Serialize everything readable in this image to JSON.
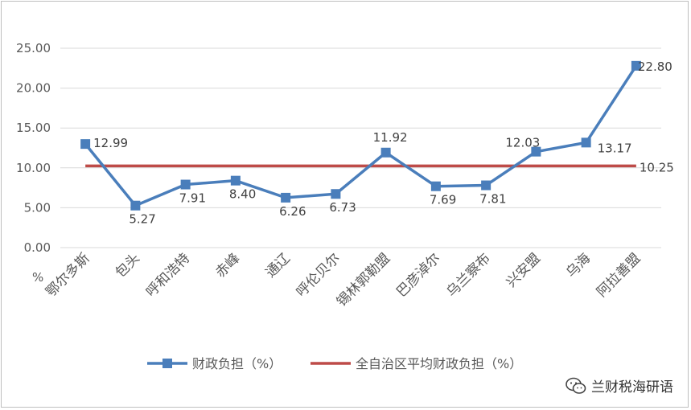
{
  "chart_data": {
    "type": "line",
    "y_unit_label": "%",
    "ylim": [
      0,
      25
    ],
    "yticks": [
      "0.00",
      "5.00",
      "10.00",
      "15.00",
      "20.00",
      "25.00"
    ],
    "grid": true,
    "legend_position": "bottom",
    "categories": [
      "鄂尔多斯",
      "包头",
      "呼和浩特",
      "赤峰",
      "通辽",
      "呼伦贝尔",
      "锡林郭勒盟",
      "巴彦淖尔",
      "乌兰察布",
      "兴安盟",
      "乌海",
      "阿拉善盟"
    ],
    "series": [
      {
        "name": "财政负担（%）",
        "color": "#4a7ebb",
        "marker": "square",
        "values": [
          12.99,
          5.27,
          7.91,
          8.4,
          6.26,
          6.73,
          11.92,
          7.69,
          7.81,
          12.03,
          13.17,
          22.8
        ],
        "labels": [
          "12.99",
          "5.27",
          "7.91",
          "8.40",
          "6.26",
          "6.73",
          "11.92",
          "7.69",
          "7.81",
          "12.03",
          "13.17",
          "22.80"
        ]
      },
      {
        "name": "全自治区平均财政负担（%）",
        "color": "#be4b48",
        "marker": "none",
        "values": [
          10.25,
          10.25,
          10.25,
          10.25,
          10.25,
          10.25,
          10.25,
          10.25,
          10.25,
          10.25,
          10.25,
          10.25
        ],
        "labels": [
          "10.25"
        ]
      }
    ]
  },
  "watermark": {
    "icon": "wechat-icon",
    "text": "兰财税海研语"
  }
}
